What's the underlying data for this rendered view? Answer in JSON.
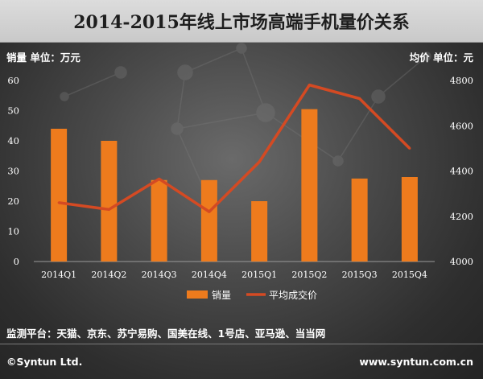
{
  "title": "2014-2015年线上市场高端手机量价关系",
  "left_axis_label": "销量  单位：万元",
  "right_axis_label": "均价  单位：元",
  "platforms_note": "监测平台：天猫、京东、苏宁易购、国美在线、1号店、亚马逊、当当网",
  "copyright": "©Syntun Ltd.",
  "website": "www.syntun.com.cn",
  "colors": {
    "bar": "#ee7b1d",
    "line": "#d44a23",
    "axis_text": "#ffffff"
  },
  "chart_data": {
    "type": "bar+line",
    "categories": [
      "2014Q1",
      "2014Q2",
      "2014Q3",
      "2014Q4",
      "2015Q1",
      "2015Q2",
      "2015Q3",
      "2015Q4"
    ],
    "series": [
      {
        "name": "销量",
        "type": "bar",
        "axis": "left",
        "values": [
          44,
          40,
          27,
          27,
          20,
          50.5,
          27.5,
          28
        ]
      },
      {
        "name": "平均成交价",
        "type": "line",
        "axis": "right",
        "values": [
          4260,
          4230,
          4365,
          4220,
          4440,
          4780,
          4720,
          4500
        ]
      }
    ],
    "y_left": {
      "min": 0,
      "max": 60,
      "ticks": [
        "0",
        "10",
        "20",
        "30",
        "40",
        "50",
        "60"
      ]
    },
    "y_right": {
      "min": 4000,
      "max": 4800,
      "ticks": [
        "4000",
        "4200",
        "4400",
        "4600",
        "4800"
      ]
    },
    "legend_position": "bottom-center",
    "grid": false
  }
}
